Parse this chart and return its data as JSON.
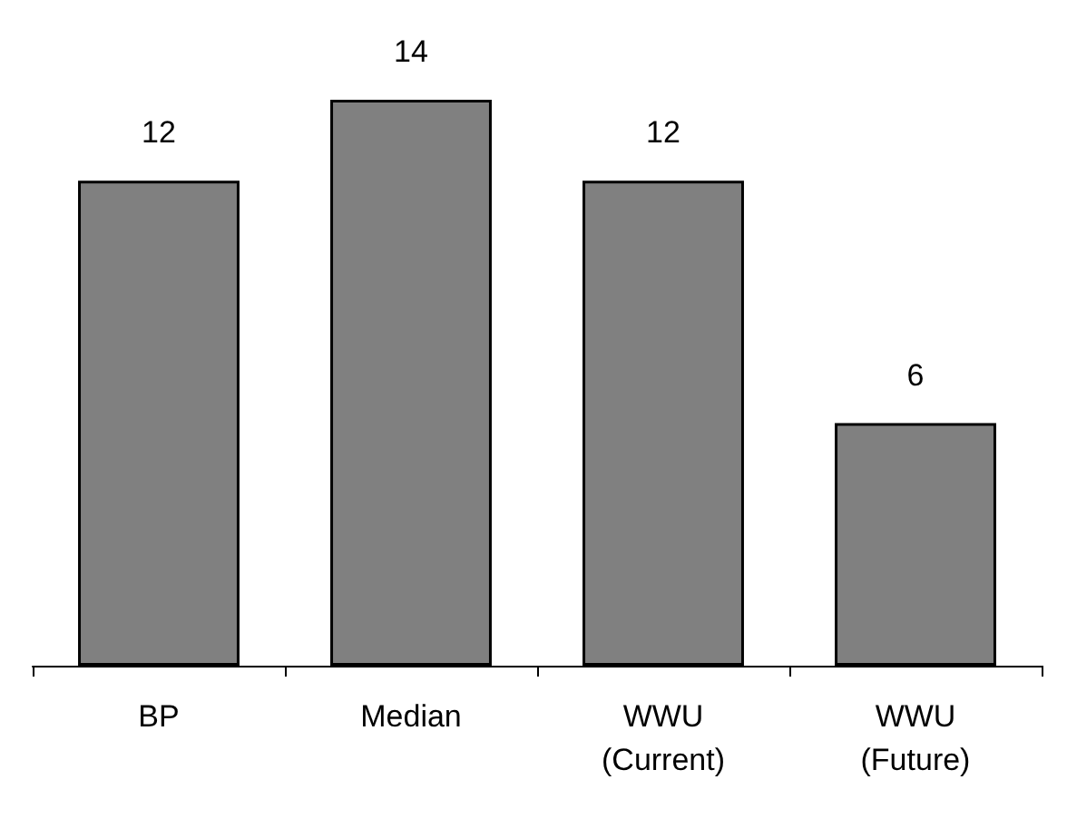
{
  "chart_data": {
    "type": "bar",
    "categories": [
      "BP",
      "Median",
      "WWU\n(Current)",
      "WWU\n(Future)"
    ],
    "values": [
      12,
      14,
      12,
      6
    ],
    "color": "#808080",
    "data_labels": true
  }
}
